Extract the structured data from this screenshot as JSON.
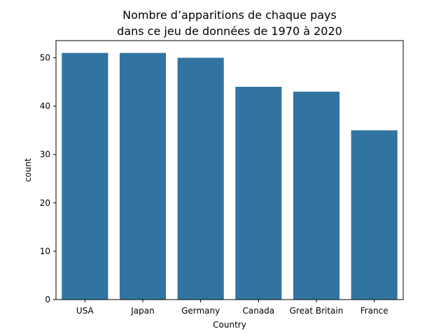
{
  "chart_data": {
    "type": "bar",
    "title_lines": [
      "Nombre d’apparitions de chaque pays",
      "dans ce jeu de données de 1970 à 2020"
    ],
    "xlabel": "Country",
    "ylabel": "count",
    "categories": [
      "USA",
      "Japan",
      "Germany",
      "Canada",
      "Great Britain",
      "France"
    ],
    "values": [
      51,
      51,
      50,
      44,
      43,
      35
    ],
    "ylim": [
      0,
      53.55
    ],
    "yticks": [
      0,
      10,
      20,
      30,
      40,
      50
    ],
    "grid": false,
    "bar_color": "#3274a1"
  }
}
